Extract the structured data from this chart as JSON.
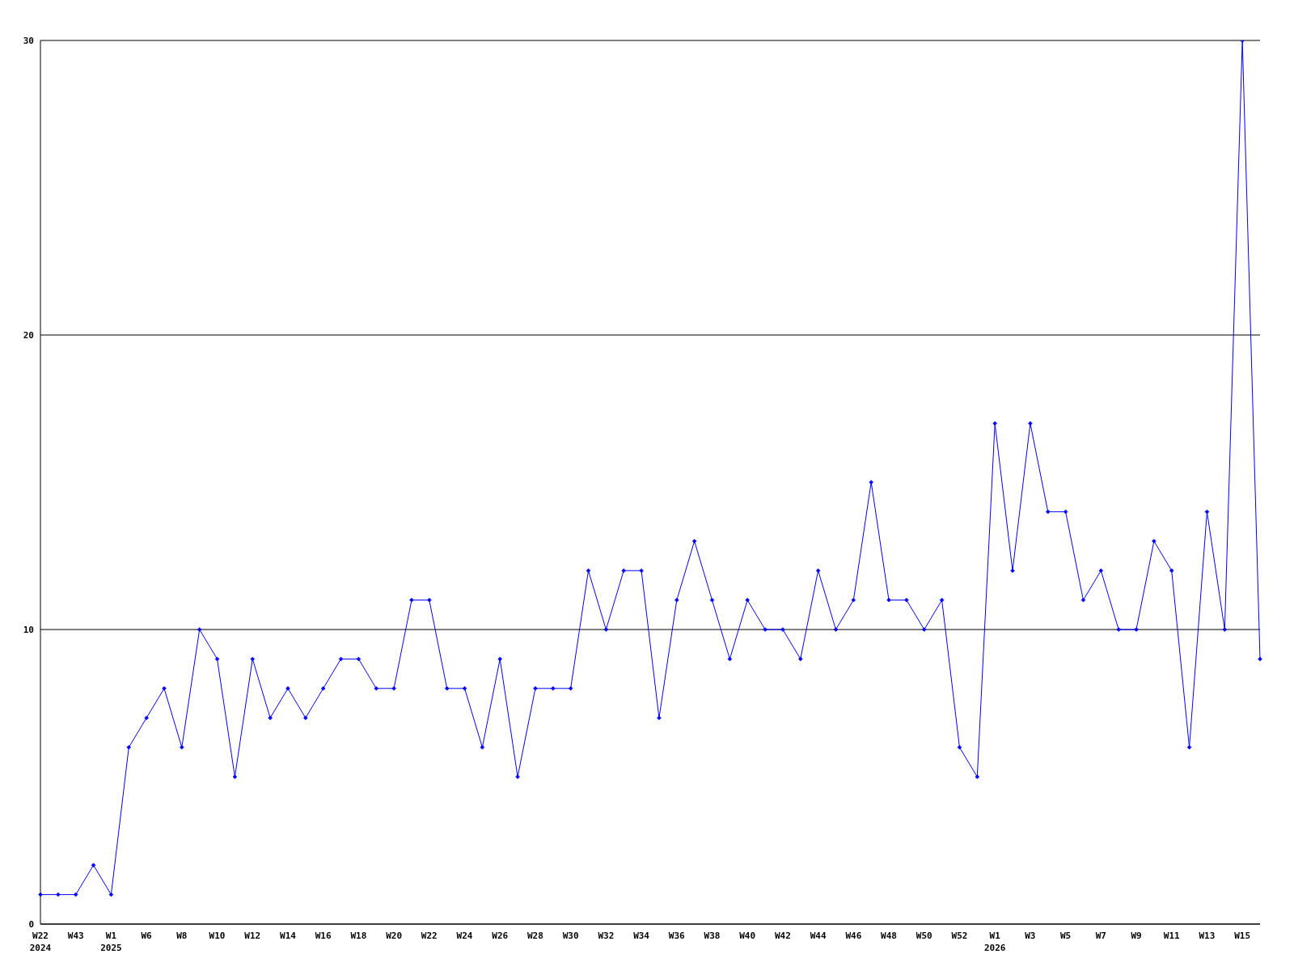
{
  "chart_data": {
    "type": "line",
    "categories": [
      "W22\n2024",
      null,
      "W43",
      null,
      "W1\n2025",
      null,
      "W6",
      null,
      "W8",
      null,
      "W10",
      null,
      "W12",
      null,
      "W14",
      null,
      "W16",
      null,
      "W18",
      null,
      "W20",
      null,
      "W22",
      null,
      "W24",
      null,
      "W26",
      null,
      "W28",
      null,
      "W30",
      null,
      "W32",
      null,
      "W34",
      null,
      "W36",
      null,
      "W38",
      null,
      "W40",
      null,
      "W42",
      null,
      "W44",
      null,
      "W46",
      null,
      "W48",
      null,
      "W50",
      null,
      "W52",
      null,
      "W1\n2026",
      null,
      "W3",
      null,
      "W5",
      null,
      "W7",
      null,
      "W9",
      null,
      "W11",
      null,
      "W13",
      null,
      "W15",
      null
    ],
    "series": [
      {
        "color": "#0000ff",
        "values": [
          1,
          1,
          1,
          2,
          1,
          6,
          7,
          8,
          6,
          10,
          9,
          5,
          9,
          7,
          8,
          7,
          8,
          9,
          9,
          8,
          8,
          11,
          11,
          8,
          8,
          6,
          9,
          5,
          8,
          8,
          8,
          12,
          10,
          12,
          12,
          7,
          11,
          13,
          11,
          9,
          11,
          10,
          10,
          9,
          12,
          10,
          11,
          15,
          11,
          11,
          10,
          11,
          6,
          5,
          17,
          12,
          17,
          14,
          14,
          11,
          12,
          10,
          10,
          13,
          12,
          6,
          14,
          10,
          30,
          9
        ]
      }
    ],
    "ylim": [
      0,
      30
    ],
    "yticks": [
      0,
      10,
      20,
      30
    ],
    "grid": "y",
    "marker": "diamond",
    "legend": false
  }
}
